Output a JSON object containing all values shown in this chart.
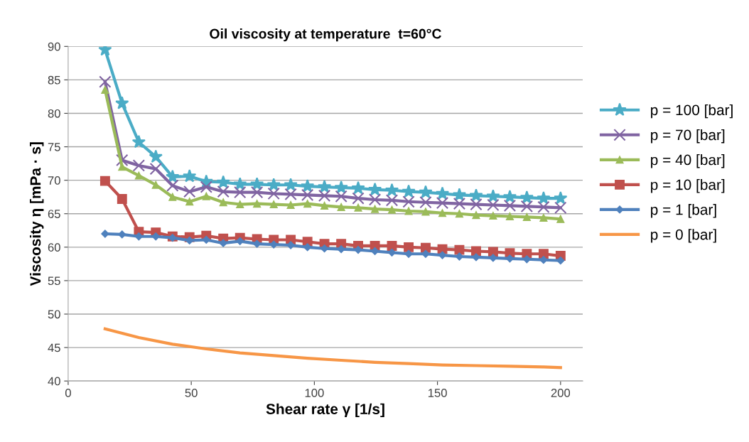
{
  "chart_data": {
    "type": "line",
    "title": "Oil viscosity at temperature  t=60°C",
    "xlabel": "Shear rate γ [1/s]",
    "ylabel": "Viscosity η [mPa · s]",
    "x": [
      15,
      21.9,
      28.7,
      35.6,
      42.4,
      49.3,
      56.1,
      63.0,
      69.8,
      76.7,
      83.5,
      90.4,
      97.2,
      104.1,
      110.9,
      117.8,
      124.6,
      131.5,
      138.3,
      145.2,
      152.0,
      158.9,
      165.7,
      172.6,
      179.4,
      186.3,
      193.1,
      200
    ],
    "series": [
      {
        "name": "p = 100 [bar]",
        "color": "#4bacc6",
        "marker": "star",
        "values": [
          89.5,
          81.5,
          75.7,
          73.5,
          70.5,
          70.6,
          69.8,
          69.7,
          69.4,
          69.4,
          69.3,
          69.3,
          69.1,
          69.0,
          68.9,
          68.8,
          68.6,
          68.5,
          68.3,
          68.2,
          68.0,
          67.8,
          67.7,
          67.6,
          67.5,
          67.4,
          67.3,
          67.3
        ]
      },
      {
        "name": "p = 70 [bar]",
        "color": "#8064a2",
        "marker": "cross",
        "values": [
          84.7,
          73.0,
          72.2,
          71.7,
          69.2,
          68.3,
          69.0,
          68.3,
          68.2,
          68.2,
          68.0,
          67.9,
          67.8,
          67.7,
          67.6,
          67.3,
          67.1,
          67.0,
          66.8,
          66.7,
          66.6,
          66.5,
          66.4,
          66.3,
          66.2,
          66.1,
          66.0,
          65.9
        ]
      },
      {
        "name": "p = 40 [bar]",
        "color": "#9bbb59",
        "marker": "triangle",
        "values": [
          83.5,
          72.0,
          70.7,
          69.3,
          67.5,
          66.8,
          67.6,
          66.7,
          66.4,
          66.5,
          66.4,
          66.3,
          66.5,
          66.2,
          66.0,
          65.9,
          65.7,
          65.6,
          65.4,
          65.3,
          65.1,
          65.0,
          64.8,
          64.7,
          64.6,
          64.5,
          64.4,
          64.2
        ]
      },
      {
        "name": "p = 10 [bar]",
        "color": "#c0504d",
        "marker": "square",
        "values": [
          69.9,
          67.2,
          62.3,
          62.2,
          61.6,
          61.5,
          61.7,
          61.3,
          61.4,
          61.2,
          61.1,
          61.1,
          60.8,
          60.5,
          60.5,
          60.2,
          60.2,
          60.2,
          60.0,
          59.9,
          59.7,
          59.6,
          59.4,
          59.3,
          59.1,
          59.0,
          59.0,
          58.7
        ]
      },
      {
        "name": "p = 1 [bar]",
        "color": "#4f81bd",
        "marker": "diamond",
        "values": [
          62.0,
          61.9,
          61.6,
          61.6,
          61.4,
          61.0,
          61.1,
          60.6,
          60.9,
          60.5,
          60.4,
          60.3,
          60.0,
          59.8,
          59.7,
          59.6,
          59.4,
          59.2,
          59.0,
          59.0,
          58.8,
          58.6,
          58.5,
          58.4,
          58.3,
          58.2,
          58.1,
          58.0
        ]
      },
      {
        "name": "p = 0 [bar]",
        "color": "#f79646",
        "marker": "none",
        "x": [
          15,
          28.7,
          42.4,
          56.1,
          69.8,
          83.5,
          97.2,
          110.9,
          124.6,
          138.3,
          152.0,
          165.7,
          179.4,
          193.1,
          200
        ],
        "values": [
          47.8,
          46.5,
          45.5,
          44.8,
          44.2,
          43.8,
          43.4,
          43.1,
          42.8,
          42.6,
          42.4,
          42.3,
          42.2,
          42.1,
          42.0
        ]
      }
    ],
    "xlim": [
      0,
      209
    ],
    "xticks": [
      0,
      50,
      100,
      150,
      200
    ],
    "ylim": [
      40,
      90
    ],
    "yticks": [
      40,
      45,
      50,
      55,
      60,
      65,
      70,
      75,
      80,
      85,
      90
    ],
    "grid": "y",
    "legend": "right",
    "line_style": "solid"
  }
}
